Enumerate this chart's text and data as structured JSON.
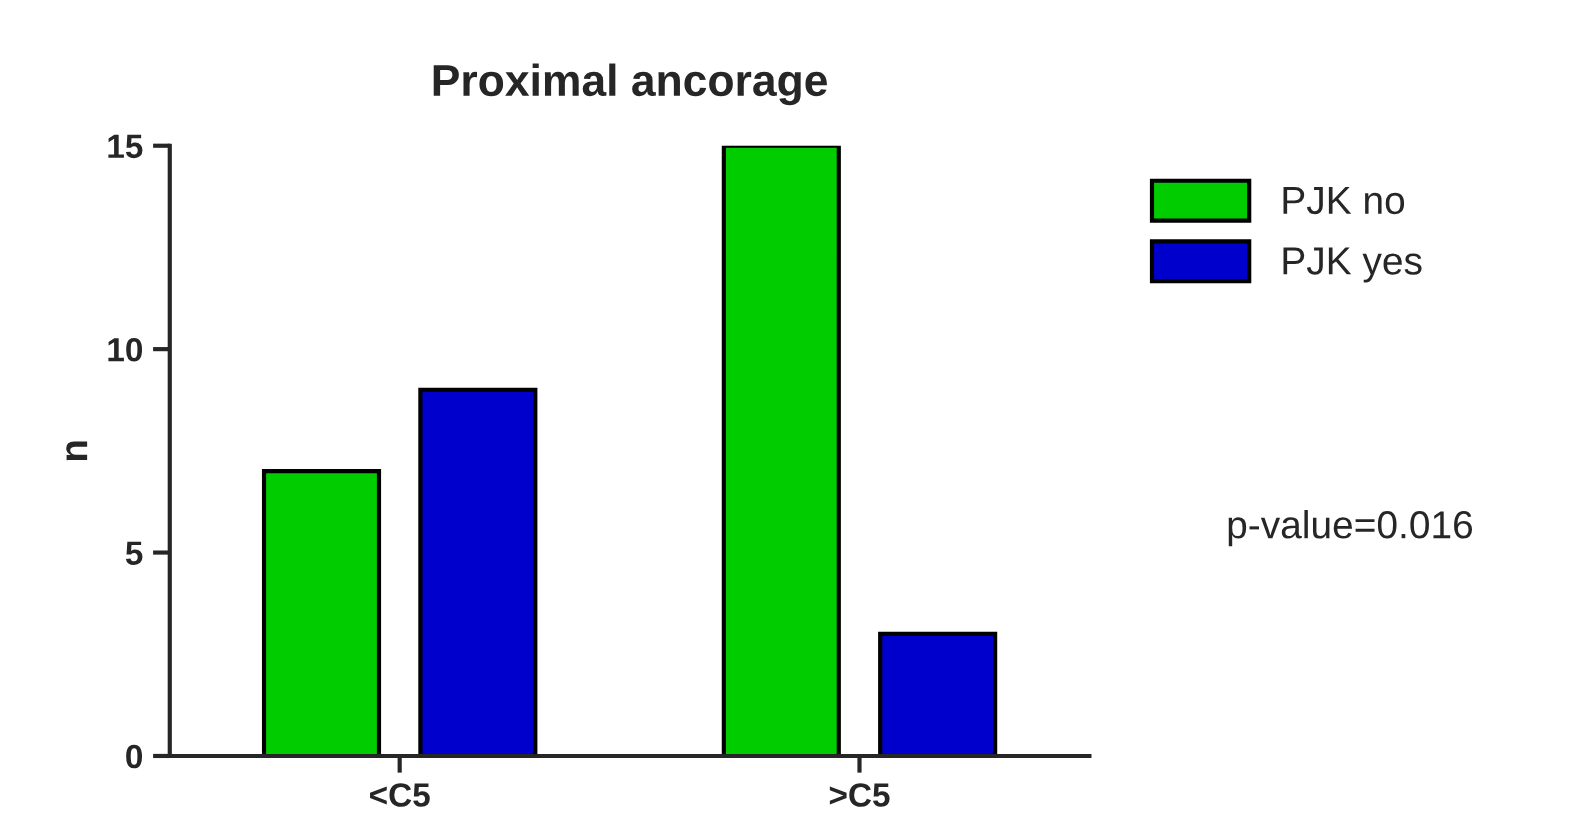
{
  "chart_data": {
    "type": "bar",
    "title": "Proximal ancorage",
    "ylabel": "n",
    "categories": [
      "<C5",
      ">C5"
    ],
    "series": [
      {
        "name": "PJK no",
        "color": "#00cc00",
        "values": [
          7,
          15
        ]
      },
      {
        "name": "PJK yes",
        "color": "#0000cc",
        "values": [
          9,
          3
        ]
      }
    ],
    "ylim": [
      0,
      15
    ],
    "yticks": [
      0,
      5,
      10,
      15
    ],
    "grid": false,
    "legend": "right",
    "annotations": [
      "p-value=0.016"
    ]
  }
}
